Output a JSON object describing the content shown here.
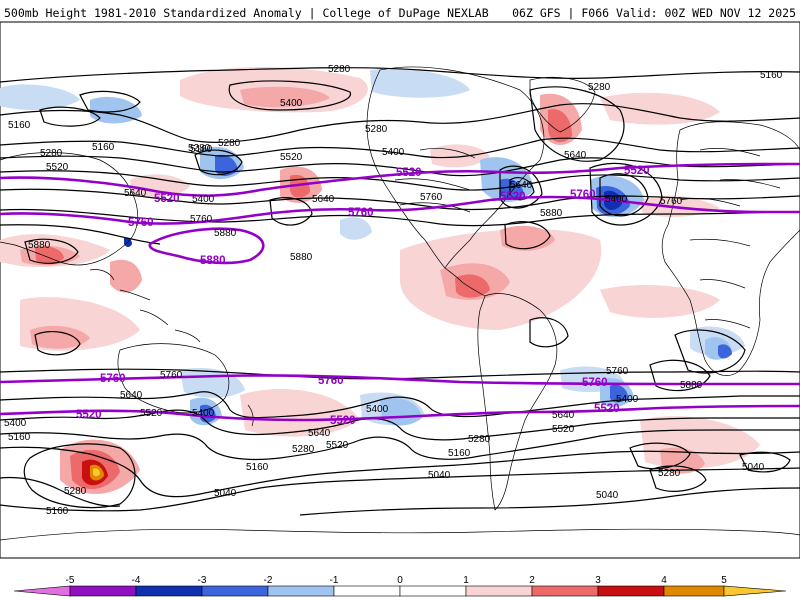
{
  "header": {
    "left_title": "500mb Height 1981-2010 Standardized Anomaly | College of DuPage NEXLAB",
    "right_title": "06Z GFS | F066 Valid: 00Z WED NOV 12 2025"
  },
  "colors": {
    "m5": "#e070e0",
    "m4": "#9010c0",
    "m3": "#1030b0",
    "m2": "#3c64dc",
    "m1": "#a0c4f0",
    "m05": "#c8dcf4",
    "p05": "#f8d4d4",
    "p1": "#f4a8a8",
    "p2": "#ec6a6a",
    "p3": "#c81010",
    "p4": "#e08800",
    "p5": "#f8c830",
    "contour": "#000000",
    "highlight": "#9400c8",
    "land": "#000000"
  },
  "colorbar": {
    "ticks": [
      "-5",
      "-4",
      "-3",
      "-2",
      "-1",
      "0",
      "1",
      "2",
      "3",
      "4",
      "5"
    ]
  },
  "contour_labels": {
    "black": [
      "5280",
      "5160",
      "5400",
      "5280",
      "5160",
      "5280",
      "5520",
      "5160",
      "5280",
      "5400",
      "5520",
      "5640",
      "5400",
      "5280",
      "5280",
      "5640",
      "5760",
      "5160",
      "5400",
      "5640",
      "5880",
      "5880",
      "5640",
      "5760",
      "5880",
      "5880",
      "5760",
      "5640",
      "5520",
      "5400",
      "5160",
      "5400",
      "5640",
      "5520",
      "5760",
      "5400",
      "5280",
      "5280",
      "5160",
      "5040",
      "5040",
      "5160",
      "5640",
      "5520",
      "5280",
      "5160",
      "5040",
      "5880",
      "5760",
      "5400",
      "5280",
      "5040"
    ],
    "highlight": [
      "5520",
      "5520",
      "5760",
      "5760",
      "5880",
      "5520",
      "5520",
      "5760",
      "5760",
      "5520",
      "5520",
      "5760",
      "5760",
      "5520"
    ]
  }
}
